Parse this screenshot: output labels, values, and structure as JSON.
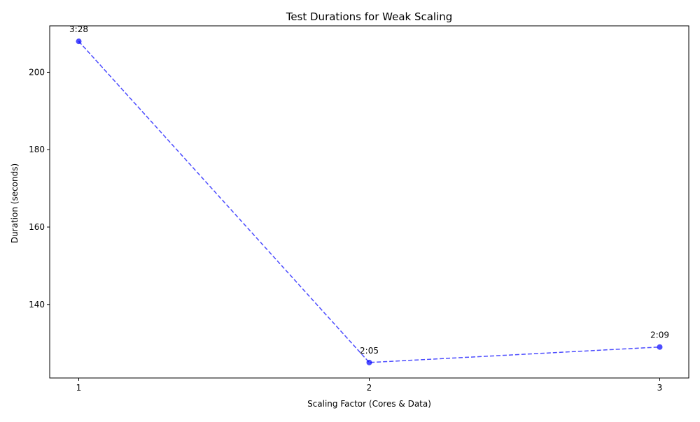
{
  "chart_data": {
    "type": "line",
    "title": "Test Durations for Weak Scaling",
    "xlabel": "Scaling Factor (Cores & Data)",
    "ylabel": "Duration (seconds)",
    "x": [
      1,
      2,
      3
    ],
    "x_ticks": [
      "1",
      "2",
      "3"
    ],
    "y_ticks": [
      140,
      160,
      180,
      200
    ],
    "xlim": [
      0.9,
      3.1
    ],
    "ylim": [
      121,
      212
    ],
    "grid": false,
    "series": [
      {
        "values": [
          208,
          125,
          129
        ],
        "labels": [
          "3:28",
          "2:05",
          "2:09"
        ],
        "color": "#0000ff",
        "line_style": "dashed",
        "marker": "circle"
      }
    ]
  }
}
